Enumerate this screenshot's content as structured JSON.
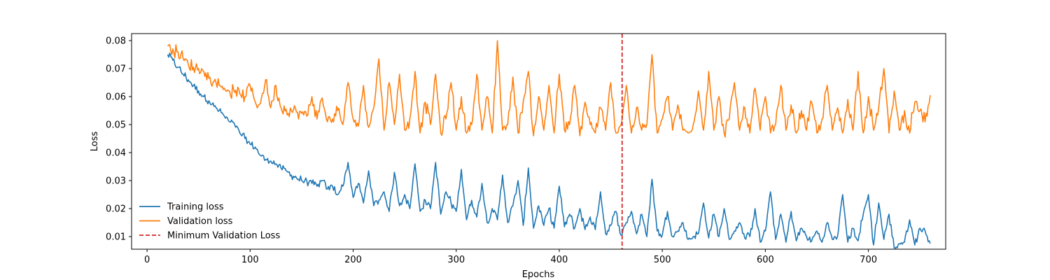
{
  "chart_data": {
    "type": "line",
    "title": "",
    "xlabel": "Epochs",
    "ylabel": "Loss",
    "xlim": [
      -15,
      775
    ],
    "ylim": [
      0.0055,
      0.0825
    ],
    "x_ticks": [
      0,
      100,
      200,
      300,
      400,
      500,
      600,
      700
    ],
    "x_tick_labels": [
      "0",
      "100",
      "200",
      "300",
      "400",
      "500",
      "600",
      "700"
    ],
    "y_ticks": [
      0.01,
      0.02,
      0.03,
      0.04,
      0.05,
      0.06,
      0.07,
      0.08
    ],
    "y_tick_labels": [
      "0.01",
      "0.02",
      "0.03",
      "0.04",
      "0.05",
      "0.06",
      "0.07",
      "0.08"
    ],
    "grid": false,
    "legend_position": "lower-left",
    "series": [
      {
        "name": "Training loss",
        "color": "#1f77b4",
        "style": "solid",
        "x": [
          20,
          25,
          30,
          35,
          40,
          45,
          50,
          55,
          60,
          65,
          70,
          75,
          80,
          85,
          90,
          95,
          100,
          105,
          110,
          115,
          120,
          125,
          130,
          135,
          140,
          145,
          150,
          155,
          160,
          165,
          170,
          175,
          180,
          185,
          190,
          195,
          200,
          205,
          210,
          215,
          220,
          225,
          230,
          235,
          240,
          245,
          250,
          255,
          260,
          265,
          270,
          275,
          280,
          285,
          290,
          295,
          300,
          305,
          310,
          315,
          320,
          325,
          330,
          335,
          340,
          345,
          350,
          355,
          360,
          365,
          370,
          375,
          380,
          385,
          390,
          395,
          400,
          405,
          410,
          415,
          420,
          425,
          430,
          435,
          440,
          445,
          450,
          455,
          460,
          465,
          470,
          475,
          480,
          485,
          490,
          495,
          500,
          505,
          510,
          515,
          520,
          525,
          530,
          535,
          540,
          545,
          550,
          555,
          560,
          565,
          570,
          575,
          580,
          585,
          590,
          595,
          600,
          605,
          610,
          615,
          620,
          625,
          630,
          635,
          640,
          645,
          650,
          655,
          660,
          665,
          670,
          675,
          680,
          685,
          690,
          695,
          700,
          705,
          710,
          715,
          720,
          725,
          730,
          735,
          740,
          745,
          750,
          755,
          760
        ],
        "y": [
          0.075,
          0.073,
          0.0705,
          0.068,
          0.066,
          0.064,
          0.062,
          0.06,
          0.0585,
          0.0565,
          0.055,
          0.053,
          0.051,
          0.05,
          0.047,
          0.045,
          0.043,
          0.042,
          0.039,
          0.0375,
          0.037,
          0.036,
          0.0345,
          0.0335,
          0.032,
          0.031,
          0.03,
          0.03,
          0.029,
          0.028,
          0.03,
          0.027,
          0.028,
          0.025,
          0.028,
          0.0365,
          0.024,
          0.029,
          0.022,
          0.0335,
          0.021,
          0.023,
          0.026,
          0.019,
          0.033,
          0.021,
          0.025,
          0.02,
          0.036,
          0.019,
          0.023,
          0.02,
          0.0365,
          0.018,
          0.026,
          0.022,
          0.019,
          0.034,
          0.016,
          0.023,
          0.017,
          0.029,
          0.015,
          0.02,
          0.016,
          0.032,
          0.015,
          0.021,
          0.03,
          0.014,
          0.0345,
          0.013,
          0.021,
          0.014,
          0.02,
          0.013,
          0.028,
          0.0135,
          0.018,
          0.013,
          0.02,
          0.0125,
          0.017,
          0.0125,
          0.026,
          0.011,
          0.014,
          0.019,
          0.0105,
          0.015,
          0.019,
          0.011,
          0.018,
          0.01,
          0.0305,
          0.012,
          0.0105,
          0.019,
          0.01,
          0.012,
          0.015,
          0.009,
          0.01,
          0.011,
          0.022,
          0.0095,
          0.018,
          0.01,
          0.02,
          0.009,
          0.012,
          0.015,
          0.0095,
          0.01,
          0.02,
          0.008,
          0.012,
          0.026,
          0.009,
          0.018,
          0.008,
          0.019,
          0.0085,
          0.013,
          0.01,
          0.0085,
          0.012,
          0.008,
          0.015,
          0.009,
          0.01,
          0.025,
          0.008,
          0.013,
          0.0085,
          0.018,
          0.025,
          0.007,
          0.022,
          0.009,
          0.018,
          0.006,
          0.0075,
          0.008,
          0.016,
          0.007,
          0.013,
          0.012,
          0.0075
        ],
        "dense": true
      },
      {
        "name": "Validation loss",
        "color": "#ff7f0e",
        "style": "solid",
        "x": [
          20,
          25,
          30,
          35,
          40,
          45,
          50,
          55,
          60,
          65,
          70,
          75,
          80,
          85,
          90,
          95,
          100,
          105,
          110,
          115,
          120,
          125,
          130,
          135,
          140,
          145,
          150,
          155,
          160,
          165,
          170,
          175,
          180,
          185,
          190,
          195,
          200,
          205,
          210,
          215,
          220,
          225,
          230,
          235,
          240,
          245,
          250,
          255,
          260,
          265,
          270,
          275,
          280,
          285,
          290,
          295,
          300,
          305,
          310,
          315,
          320,
          325,
          330,
          335,
          340,
          345,
          350,
          355,
          360,
          365,
          370,
          375,
          380,
          385,
          390,
          395,
          400,
          405,
          410,
          415,
          420,
          425,
          430,
          435,
          440,
          445,
          450,
          455,
          460,
          465,
          470,
          475,
          480,
          485,
          490,
          495,
          500,
          505,
          510,
          515,
          520,
          525,
          530,
          535,
          540,
          545,
          550,
          555,
          560,
          565,
          570,
          575,
          580,
          585,
          590,
          595,
          600,
          605,
          610,
          615,
          620,
          625,
          630,
          635,
          640,
          645,
          650,
          655,
          660,
          665,
          670,
          675,
          680,
          685,
          690,
          695,
          700,
          705,
          710,
          715,
          720,
          725,
          730,
          735,
          740,
          745,
          750,
          755,
          760
        ],
        "y": [
          0.078,
          0.077,
          0.076,
          0.0735,
          0.0715,
          0.0705,
          0.07,
          0.069,
          0.0665,
          0.0655,
          0.064,
          0.063,
          0.062,
          0.0615,
          0.061,
          0.06,
          0.064,
          0.058,
          0.0575,
          0.066,
          0.056,
          0.064,
          0.056,
          0.0555,
          0.055,
          0.0545,
          0.054,
          0.053,
          0.06,
          0.052,
          0.0595,
          0.051,
          0.052,
          0.055,
          0.05,
          0.065,
          0.052,
          0.0495,
          0.064,
          0.049,
          0.056,
          0.0735,
          0.048,
          0.065,
          0.05,
          0.068,
          0.048,
          0.052,
          0.069,
          0.047,
          0.058,
          0.05,
          0.068,
          0.047,
          0.052,
          0.065,
          0.048,
          0.06,
          0.047,
          0.05,
          0.068,
          0.048,
          0.06,
          0.047,
          0.08,
          0.048,
          0.05,
          0.067,
          0.047,
          0.058,
          0.069,
          0.046,
          0.06,
          0.048,
          0.064,
          0.047,
          0.068,
          0.048,
          0.05,
          0.064,
          0.046,
          0.058,
          0.05,
          0.047,
          0.056,
          0.048,
          0.065,
          0.047,
          0.05,
          0.064,
          0.047,
          0.056,
          0.048,
          0.05,
          0.075,
          0.047,
          0.052,
          0.06,
          0.048,
          0.057,
          0.048,
          0.047,
          0.05,
          0.062,
          0.048,
          0.069,
          0.048,
          0.06,
          0.047,
          0.052,
          0.065,
          0.048,
          0.056,
          0.047,
          0.063,
          0.048,
          0.06,
          0.047,
          0.05,
          0.064,
          0.048,
          0.057,
          0.047,
          0.055,
          0.048,
          0.058,
          0.047,
          0.052,
          0.064,
          0.048,
          0.056,
          0.047,
          0.059,
          0.048,
          0.069,
          0.047,
          0.06,
          0.048,
          0.056,
          0.07,
          0.047,
          0.062,
          0.048,
          0.055,
          0.047,
          0.058,
          0.055,
          0.051,
          0.0605
        ],
        "dense": true
      }
    ],
    "vlines": [
      {
        "name": "Minimum Validation Loss",
        "x": 461,
        "color": "#d62728",
        "style": "dashed"
      }
    ]
  }
}
